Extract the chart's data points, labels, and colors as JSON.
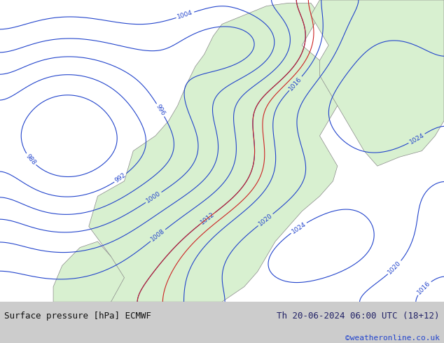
{
  "title_left": "Surface pressure [hPa] ECMWF",
  "title_right": "Th 20-06-2024 06:00 UTC (18+12)",
  "copyright": "©weatheronline.co.uk",
  "fig_width": 6.34,
  "fig_height": 4.9,
  "dpi": 100,
  "bg_color_map": "#d8f0d0",
  "bg_color_sea": "#e8e8f0",
  "border_color": "#888888",
  "contour_color_blue": "#2244cc",
  "contour_color_red": "#cc2222",
  "label_color_blue": "#2244cc",
  "label_color_red": "#cc2222",
  "label_color_black": "#111111",
  "bottom_bar_color": "#cccccc",
  "bottom_bar_height": 0.12,
  "text_color_left": "#111111",
  "text_color_right": "#222266",
  "copyright_color": "#2244cc",
  "font_size_bottom": 9,
  "font_size_copyright": 8
}
